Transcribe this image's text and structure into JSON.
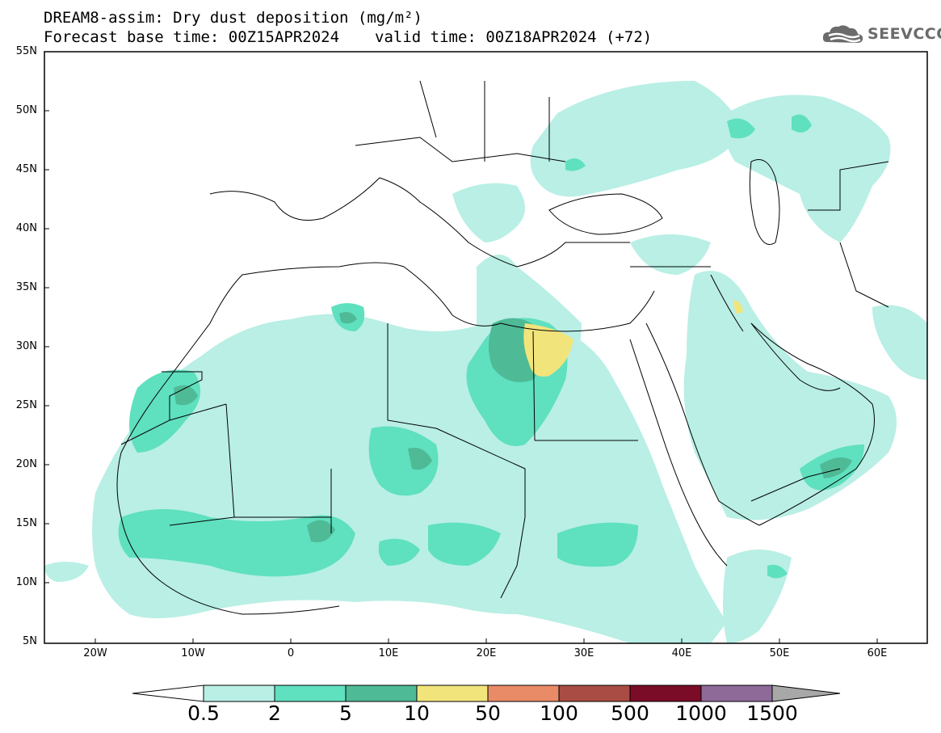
{
  "title_line1": "DREAM8-assim: Dry dust deposition (mg/m²)",
  "title_base": "Forecast base time: 00Z15APR2024",
  "title_valid": "valid time: 00Z18APR2024 (+72)",
  "logo_text": "SEEVCCC",
  "logo_icon": "cloud-logo-icon",
  "lat_labels": [
    "55N",
    "50N",
    "45N",
    "40N",
    "35N",
    "30N",
    "25N",
    "20N",
    "15N",
    "10N",
    "5N"
  ],
  "lon_labels": [
    "20W",
    "10W",
    "0",
    "10E",
    "20E",
    "30E",
    "40E",
    "50E",
    "60E"
  ],
  "colorbar": {
    "labels": [
      "0.5",
      "2",
      "5",
      "10",
      "50",
      "100",
      "500",
      "1000",
      "1500"
    ],
    "colors": [
      "#b9efe5",
      "#5fe0bf",
      "#4fba96",
      "#f1e47b",
      "#e98b66",
      "#a94c43",
      "#7a0c28",
      "#8d6a98",
      "#a8a8a8"
    ]
  },
  "colors": {
    "land": "#ffffff",
    "border": "#000000"
  }
}
